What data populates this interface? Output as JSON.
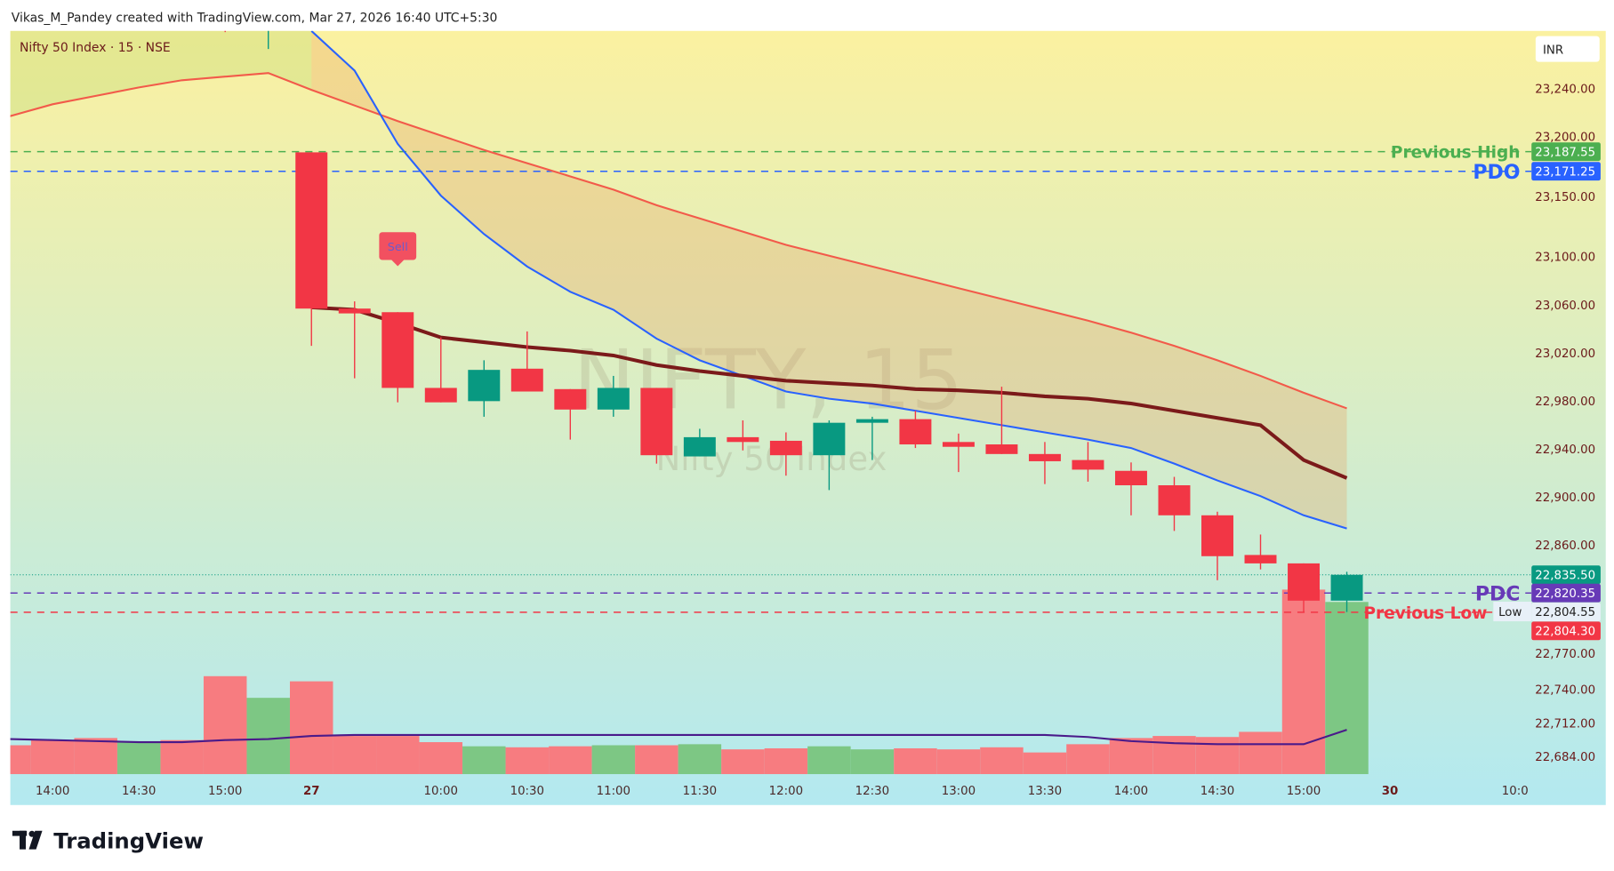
{
  "header": {
    "attribution": "Vikas_M_Pandey created with TradingView.com, Mar 27, 2026 16:40 UTC+5:30",
    "legend": "Nifty 50 Index · 15 · NSE",
    "currency_button": "INR",
    "watermark_symbol": "NIFTY, 15",
    "watermark_name": "Nifty 50 Index",
    "brand": "TradingView"
  },
  "colors": {
    "up": "#089981",
    "down": "#f23645",
    "vol_up": "#7dc784",
    "vol_down": "#f77c80",
    "upper_band": "#f25a4a",
    "lower_band": "#2962ff",
    "mid_line": "#7b1a1a",
    "volume_ma": "#4a1a8a",
    "bg_top": "#fbf1a0",
    "bg_bottom": "#b3e9f0"
  },
  "chart_data": {
    "type": "candlestick",
    "title": "Nifty 50 Index · 15 · NSE",
    "ylim": [
      22670,
      23288
    ],
    "y_ticks": [
      "23,240.00",
      "23,200.00",
      "23,150.00",
      "23,100.00",
      "23,060.00",
      "23,020.00",
      "22,980.00",
      "22,940.00",
      "22,900.00",
      "22,860.00",
      "22,770.00",
      "22,740.00",
      "22,712.00",
      "22,684.00"
    ],
    "y_tick_values": [
      23240,
      23200,
      23150,
      23100,
      23060,
      23020,
      22980,
      22940,
      22900,
      22860,
      22770,
      22740,
      22712,
      22684
    ],
    "x_ticks": [
      {
        "label": "14:00",
        "bar": -6,
        "bold": false
      },
      {
        "label": "14:30",
        "bar": -4,
        "bold": false
      },
      {
        "label": "15:00",
        "bar": -2,
        "bold": false
      },
      {
        "label": "27",
        "bar": 0,
        "bold": true
      },
      {
        "label": "10:00",
        "bar": 3,
        "bold": false
      },
      {
        "label": "10:30",
        "bar": 5,
        "bold": false
      },
      {
        "label": "11:00",
        "bar": 7,
        "bold": false
      },
      {
        "label": "11:30",
        "bar": 9,
        "bold": false
      },
      {
        "label": "12:00",
        "bar": 11,
        "bold": false
      },
      {
        "label": "12:30",
        "bar": 13,
        "bold": false
      },
      {
        "label": "13:00",
        "bar": 15,
        "bold": false
      },
      {
        "label": "13:30",
        "bar": 17,
        "bold": false
      },
      {
        "label": "14:00",
        "bar": 19,
        "bold": false
      },
      {
        "label": "14:30",
        "bar": 21,
        "bold": false
      },
      {
        "label": "15:00",
        "bar": 23,
        "bold": false
      },
      {
        "label": "30",
        "bar": 25,
        "bold": true
      },
      {
        "label": "10:0",
        "bar": 27.9,
        "bold": false
      }
    ],
    "candles": [
      {
        "bar": -2,
        "o": 23300,
        "h": 23305,
        "l": 23287,
        "c": 23295
      },
      {
        "bar": -1,
        "o": 23290,
        "h": 23305,
        "l": 23273,
        "c": 23300
      },
      {
        "bar": 0,
        "time": "09:15",
        "o": 23187,
        "h": 23187,
        "l": 23026,
        "c": 23057
      },
      {
        "bar": 1,
        "time": "09:30",
        "o": 23057,
        "h": 23063,
        "l": 22999,
        "c": 23053
      },
      {
        "bar": 2,
        "time": "09:45",
        "o": 23054,
        "h": 23054,
        "l": 22979,
        "c": 22991
      },
      {
        "bar": 3,
        "time": "10:00",
        "o": 22991,
        "h": 23033,
        "l": 22979,
        "c": 22979
      },
      {
        "bar": 4,
        "time": "10:15",
        "o": 22980,
        "h": 23014,
        "l": 22967,
        "c": 23006
      },
      {
        "bar": 5,
        "time": "10:30",
        "o": 23007,
        "h": 23038,
        "l": 22988,
        "c": 22988
      },
      {
        "bar": 6,
        "time": "10:45",
        "o": 22990,
        "h": 22990,
        "l": 22948,
        "c": 22973
      },
      {
        "bar": 7,
        "time": "11:00",
        "o": 22973,
        "h": 23001,
        "l": 22967,
        "c": 22991
      },
      {
        "bar": 8,
        "time": "11:15",
        "o": 22991,
        "h": 22991,
        "l": 22928,
        "c": 22935
      },
      {
        "bar": 9,
        "time": "11:30",
        "o": 22934,
        "h": 22957,
        "l": 22934,
        "c": 22950
      },
      {
        "bar": 10,
        "time": "11:45",
        "o": 22950,
        "h": 22964,
        "l": 22939,
        "c": 22946
      },
      {
        "bar": 11,
        "time": "12:00",
        "o": 22947,
        "h": 22954,
        "l": 22918,
        "c": 22935
      },
      {
        "bar": 12,
        "time": "12:15",
        "o": 22935,
        "h": 22964,
        "l": 22906,
        "c": 22962
      },
      {
        "bar": 13,
        "time": "12:30",
        "o": 22962,
        "h": 22967,
        "l": 22931,
        "c": 22965
      },
      {
        "bar": 14,
        "time": "12:45",
        "o": 22965,
        "h": 22972,
        "l": 22941,
        "c": 22944
      },
      {
        "bar": 15,
        "time": "13:00",
        "o": 22946,
        "h": 22953,
        "l": 22921,
        "c": 22942
      },
      {
        "bar": 16,
        "time": "13:15",
        "o": 22944,
        "h": 22992,
        "l": 22936,
        "c": 22936
      },
      {
        "bar": 17,
        "time": "13:30",
        "o": 22936,
        "h": 22946,
        "l": 22911,
        "c": 22930
      },
      {
        "bar": 18,
        "time": "13:45",
        "o": 22931,
        "h": 22946,
        "l": 22913,
        "c": 22923
      },
      {
        "bar": 19,
        "time": "14:00",
        "o": 22922,
        "h": 22929,
        "l": 22885,
        "c": 22910
      },
      {
        "bar": 20,
        "time": "14:15",
        "o": 22910,
        "h": 22917,
        "l": 22872,
        "c": 22885
      },
      {
        "bar": 21,
        "time": "14:30",
        "o": 22885,
        "h": 22888,
        "l": 22831,
        "c": 22851
      },
      {
        "bar": 22,
        "time": "14:45",
        "o": 22852,
        "h": 22869,
        "l": 22840,
        "c": 22845
      },
      {
        "bar": 23,
        "time": "15:00",
        "o": 22845,
        "h": 22845,
        "l": 22804.3,
        "c": 22814
      },
      {
        "bar": 24,
        "time": "15:15",
        "o": 22814,
        "h": 22838,
        "l": 22804.55,
        "c": 22835.5
      }
    ],
    "volume_relative": {
      "start_bar": -7,
      "values": [
        28,
        33,
        35,
        32,
        33,
        95,
        74,
        90,
        37,
        37,
        31,
        27,
        26,
        27,
        28,
        28,
        29,
        24,
        25,
        27,
        24,
        25,
        24,
        26,
        21,
        29,
        35,
        37,
        36,
        41,
        179,
        167
      ],
      "direction": [
        "d",
        "d",
        "d",
        "u",
        "d",
        "d",
        "u",
        "d",
        "d",
        "d",
        "d",
        "u",
        "d",
        "d",
        "u",
        "d",
        "u",
        "d",
        "d",
        "u",
        "u",
        "d",
        "d",
        "d",
        "d",
        "d",
        "d",
        "d",
        "d",
        "d",
        "d",
        "u"
      ],
      "ma": [
        34,
        33,
        32,
        31,
        31,
        33,
        34,
        37,
        38,
        38,
        38,
        38,
        38,
        38,
        38,
        38,
        38,
        38,
        38,
        38,
        38,
        38,
        38,
        38,
        38,
        36,
        32,
        30,
        29,
        29,
        29,
        43
      ]
    },
    "upper_band": {
      "start_bar": -7,
      "values": [
        23217,
        23227,
        23234,
        23241,
        23247,
        23250,
        23253,
        23239,
        23226,
        23213,
        23201,
        23189,
        23178,
        23167,
        23156,
        23143,
        23132,
        23121,
        23110,
        23101,
        23092,
        23083,
        23074,
        23065,
        23056,
        23047,
        23037,
        23026,
        23014,
        23001,
        22987,
        22974
      ]
    },
    "lower_band": {
      "start_bar": 0,
      "values": [
        23288,
        23255,
        23194,
        23151,
        23119,
        23092,
        23071,
        23056,
        23032,
        23014,
        23001,
        22988,
        22982,
        22978,
        22972,
        22966,
        22960,
        22954,
        22948,
        22941,
        22928,
        22914,
        22901,
        22885,
        22874
      ]
    },
    "mid_line": {
      "start_bar": 0,
      "values": [
        23058,
        23056,
        23045,
        23033,
        23029,
        23025,
        23022,
        23018,
        23010,
        23005,
        23001,
        22997,
        22995,
        22993,
        22990,
        22989,
        22987,
        22984,
        22982,
        22978,
        22972,
        22966,
        22960,
        22931,
        22916
      ]
    },
    "signals": [
      {
        "bar": 2,
        "label": "Sell",
        "price_anchor": 23100
      }
    ],
    "levels": [
      {
        "name": "Previous High",
        "price": 23187.55,
        "price_label": "23,187.55",
        "color": "#4caf50",
        "tag_text": "#ffffff",
        "big": false
      },
      {
        "name": "PDO",
        "price": 23171.25,
        "price_label": "23,171.25",
        "color": "#2962ff",
        "tag_text": "#ffffff",
        "big": true
      },
      {
        "name": "PDC",
        "price": 22820.35,
        "price_label": "22,820.35",
        "color": "#673ab7",
        "tag_text": "#ffffff",
        "big": true
      },
      {
        "name": "Previous Low",
        "price": 22804.3,
        "price_label": "22,804.30",
        "color": "#f23645",
        "tag_text": "#ffffff",
        "big": false
      }
    ],
    "last_price": {
      "price": 22835.5,
      "label": "22,835.50"
    },
    "low_marker": {
      "label": "Low",
      "price": 22804.55,
      "price_label": "22,804.55"
    }
  }
}
